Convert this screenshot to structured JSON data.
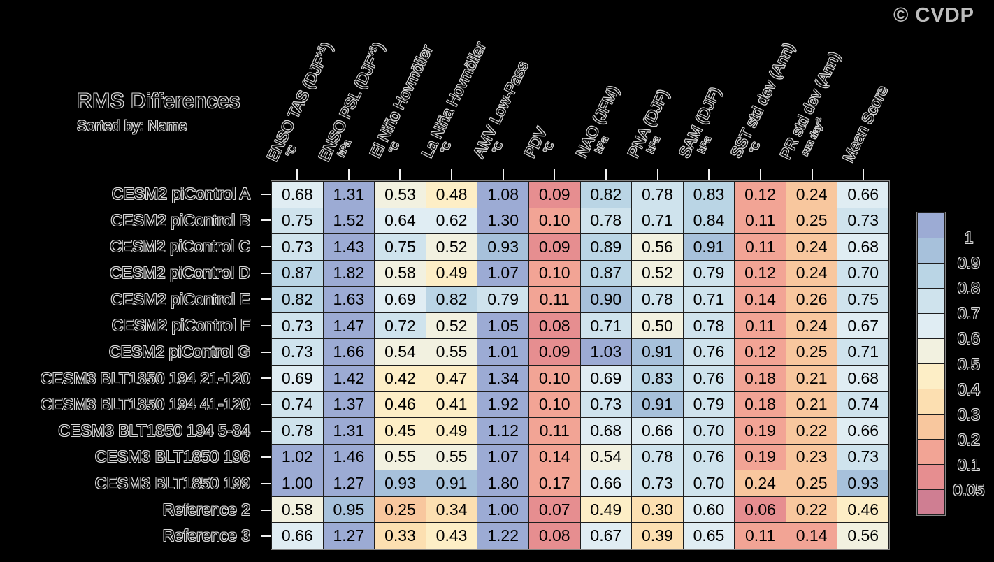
{
  "chart_data": {
    "type": "heatmap",
    "title": "RMS Differences",
    "subtitle": "Sorted by: Name",
    "watermark": "© CVDP",
    "columns": [
      {
        "pre": "ENSO TAS (DJF",
        "sup": "+1",
        "post": ")",
        "unit": "°C",
        "unit_sup": ""
      },
      {
        "pre": "ENSO PSL (DJF",
        "sup": "+1",
        "post": ")",
        "unit": "hPa",
        "unit_sup": ""
      },
      {
        "pre": "El Niño Hovmöller",
        "sup": "",
        "post": "",
        "unit": "°C",
        "unit_sup": ""
      },
      {
        "pre": "La Niña Hovmöller",
        "sup": "",
        "post": "",
        "unit": "°C",
        "unit_sup": ""
      },
      {
        "pre": "AMV Low-Pass",
        "sup": "",
        "post": "",
        "unit": "°C",
        "unit_sup": ""
      },
      {
        "pre": "PDV",
        "sup": "",
        "post": "",
        "unit": "°C",
        "unit_sup": ""
      },
      {
        "pre": "NAO (JFM)",
        "sup": "",
        "post": "",
        "unit": "hPa",
        "unit_sup": ""
      },
      {
        "pre": "PNA (DJF)",
        "sup": "",
        "post": "",
        "unit": "hPa",
        "unit_sup": ""
      },
      {
        "pre": "SAM (DJF)",
        "sup": "",
        "post": "",
        "unit": "hPa",
        "unit_sup": ""
      },
      {
        "pre": "SST std dev (Ann)",
        "sup": "",
        "post": "",
        "unit": "°C",
        "unit_sup": ""
      },
      {
        "pre": "PR std dev (Ann)",
        "sup": "",
        "post": "",
        "unit": "mm day",
        "unit_sup": "-1"
      },
      {
        "pre": "Mean Score",
        "sup": "",
        "post": "",
        "unit": "",
        "unit_sup": ""
      }
    ],
    "rows": [
      "CESM2 piControl A",
      "CESM2 piControl B",
      "CESM2 piControl C",
      "CESM2 piControl D",
      "CESM2 piControl E",
      "CESM2 piControl F",
      "CESM2 piControl G",
      "CESM3 BLT1850 194 21-120",
      "CESM3 BLT1850 194 41-120",
      "CESM3 BLT1850 194 5-84",
      "CESM3 BLT1850 198",
      "CESM3 BLT1850 199",
      "Reference 2",
      "Reference 3"
    ],
    "values": [
      [
        0.68,
        1.31,
        0.53,
        0.48,
        1.08,
        0.09,
        0.82,
        0.78,
        0.83,
        0.12,
        0.24,
        0.66
      ],
      [
        0.75,
        1.52,
        0.64,
        0.62,
        1.3,
        0.1,
        0.78,
        0.71,
        0.84,
        0.11,
        0.25,
        0.73
      ],
      [
        0.73,
        1.43,
        0.75,
        0.52,
        0.93,
        0.09,
        0.89,
        0.56,
        0.91,
        0.11,
        0.24,
        0.68
      ],
      [
        0.87,
        1.82,
        0.58,
        0.49,
        1.07,
        0.1,
        0.87,
        0.52,
        0.79,
        0.12,
        0.24,
        0.7
      ],
      [
        0.82,
        1.63,
        0.69,
        0.82,
        0.79,
        0.11,
        0.9,
        0.78,
        0.71,
        0.14,
        0.26,
        0.75
      ],
      [
        0.73,
        1.47,
        0.72,
        0.52,
        1.05,
        0.08,
        0.71,
        0.5,
        0.78,
        0.11,
        0.24,
        0.67
      ],
      [
        0.73,
        1.66,
        0.54,
        0.55,
        1.01,
        0.09,
        1.03,
        0.91,
        0.76,
        0.12,
        0.25,
        0.71
      ],
      [
        0.69,
        1.42,
        0.42,
        0.47,
        1.34,
        0.1,
        0.69,
        0.83,
        0.76,
        0.18,
        0.21,
        0.68
      ],
      [
        0.74,
        1.37,
        0.46,
        0.41,
        1.92,
        0.1,
        0.73,
        0.91,
        0.79,
        0.18,
        0.21,
        0.74
      ],
      [
        0.78,
        1.31,
        0.45,
        0.49,
        1.12,
        0.11,
        0.68,
        0.66,
        0.7,
        0.19,
        0.22,
        0.66
      ],
      [
        1.02,
        1.46,
        0.55,
        0.55,
        1.07,
        0.14,
        0.54,
        0.78,
        0.76,
        0.19,
        0.23,
        0.73
      ],
      [
        1.0,
        1.27,
        0.93,
        0.91,
        1.8,
        0.17,
        0.66,
        0.73,
        0.7,
        0.24,
        0.25,
        0.93
      ],
      [
        0.58,
        0.95,
        0.25,
        0.34,
        1.0,
        0.07,
        0.49,
        0.3,
        0.6,
        0.06,
        0.22,
        0.46
      ],
      [
        0.66,
        1.27,
        0.33,
        0.43,
        1.22,
        0.08,
        0.67,
        0.39,
        0.65,
        0.11,
        0.14,
        0.56
      ]
    ],
    "colorbar": {
      "tick_labels": [
        "1",
        "0.9",
        "0.8",
        "0.7",
        "0.6",
        "0.5",
        "0.4",
        "0.3",
        "0.2",
        "0.1",
        "0.05"
      ],
      "thresholds": [
        0.05,
        0.1,
        0.2,
        0.3,
        0.4,
        0.5,
        0.6,
        0.7,
        0.8,
        0.9,
        1.0
      ],
      "colors_low_to_high": [
        "#cf7e92",
        "#e68e90",
        "#f2a495",
        "#f8c79e",
        "#fcdfb1",
        "#fdeec6",
        "#f2f1e0",
        "#e0edf3",
        "#cfe3ed",
        "#bad5e5",
        "#a7c1db",
        "#9cabd4"
      ]
    }
  }
}
